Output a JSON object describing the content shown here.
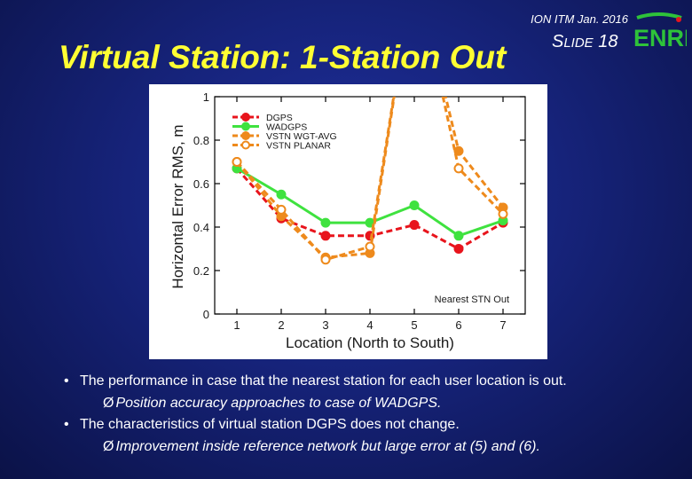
{
  "header": {
    "conference": "ION ITM Jan. 2016",
    "slide_prefix_big": "S",
    "slide_prefix_small": "LIDE",
    "slide_number": "18",
    "logo_text": "ENRI"
  },
  "title": "Virtual Station: 1-Station Out",
  "bullets": [
    {
      "text": "The performance in case that the nearest station for each user location is out.",
      "sub": "Position accuracy approaches to case of WADGPS."
    },
    {
      "text": "The characteristics of virtual station DGPS does not change.",
      "sub": "Improvement inside reference network but large error at (5) and (6)."
    }
  ],
  "chart_data": {
    "type": "line",
    "title": "",
    "xlabel": "Location (North to South)",
    "ylabel": "Horizontal Error RMS, m",
    "x": [
      1,
      2,
      3,
      4,
      5,
      6,
      7
    ],
    "xticks": [
      "1",
      "2",
      "3",
      "4",
      "5",
      "6",
      "7"
    ],
    "ylim": [
      0,
      1
    ],
    "yticks": [
      "0",
      "0.2",
      "0.4",
      "0.6",
      "0.8",
      "1"
    ],
    "yticks_values": [
      0,
      0.2,
      0.4,
      0.6,
      0.8,
      1.0
    ],
    "annotation": "Nearest STN Out",
    "legend_position": "top-left",
    "grid": false,
    "series": [
      {
        "name": "DGPS",
        "color": "#e8141c",
        "dashed": true,
        "marker": "filled",
        "values": [
          0.67,
          0.44,
          0.36,
          0.36,
          0.41,
          0.3,
          0.42
        ]
      },
      {
        "name": "WADGPS",
        "color": "#3fe23f",
        "dashed": false,
        "marker": "filled",
        "values": [
          0.67,
          0.55,
          0.42,
          0.42,
          0.5,
          0.36,
          0.43
        ]
      },
      {
        "name": "VSTN WGT-AVG",
        "color": "#ee8a1c",
        "dashed": true,
        "marker": "filled",
        "values": [
          0.7,
          0.45,
          0.26,
          0.28,
          1.6,
          0.75,
          0.49
        ]
      },
      {
        "name": "VSTN PLANAR",
        "color": "#ee8a1c",
        "dashed": true,
        "marker": "open",
        "values": [
          0.7,
          0.48,
          0.25,
          0.31,
          1.6,
          0.67,
          0.46
        ]
      }
    ]
  }
}
